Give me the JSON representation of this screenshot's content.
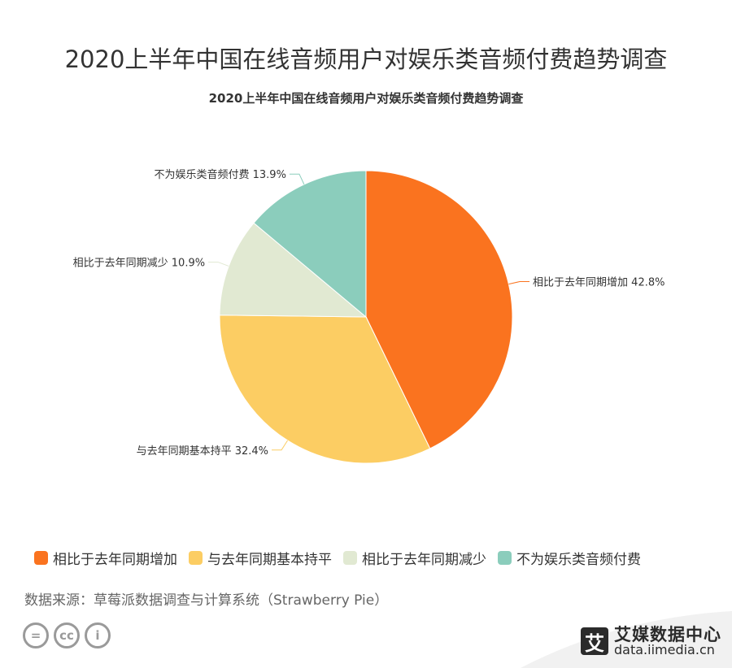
{
  "page_title": "2020上半年中国在线音频用户对娱乐类音频付费趋势调查",
  "chart_data": {
    "type": "pie",
    "title": "2020上半年中国在线音频用户对娱乐类音频付费趋势调查",
    "slices": [
      {
        "label": "相比于去年同期增加",
        "value": 42.8,
        "value_label": "42.8%",
        "color": "#fa731f"
      },
      {
        "label": "与去年同期基本持平",
        "value": 32.4,
        "value_label": "32.4%",
        "color": "#fccd63"
      },
      {
        "label": "相比于去年同期减少",
        "value": 10.9,
        "value_label": "10.9%",
        "color": "#e1e9d2"
      },
      {
        "label": "不为娱乐类音频付费",
        "value": 13.9,
        "value_label": "13.9%",
        "color": "#8bcdbc"
      }
    ],
    "legend_position": "bottom"
  },
  "legend": {
    "items": [
      {
        "label": "相比于去年同期增加",
        "color": "#fa731f"
      },
      {
        "label": "与去年同期基本持平",
        "color": "#fccd63"
      },
      {
        "label": "相比于去年同期减少",
        "color": "#e1e9d2"
      },
      {
        "label": "不为娱乐类音频付费",
        "color": "#8bcdbc"
      }
    ]
  },
  "source_text": "数据来源：草莓派数据调查与计算系统（Strawberry Pie）",
  "footer": {
    "cc_icons": [
      "equals-icon",
      "cc-icon",
      "person-icon"
    ],
    "cc_glyphs": [
      "=",
      "cc",
      "i"
    ],
    "brand_logo": "艾",
    "brand_name": "艾媒数据中心",
    "brand_url": "data.iimedia.cn"
  }
}
